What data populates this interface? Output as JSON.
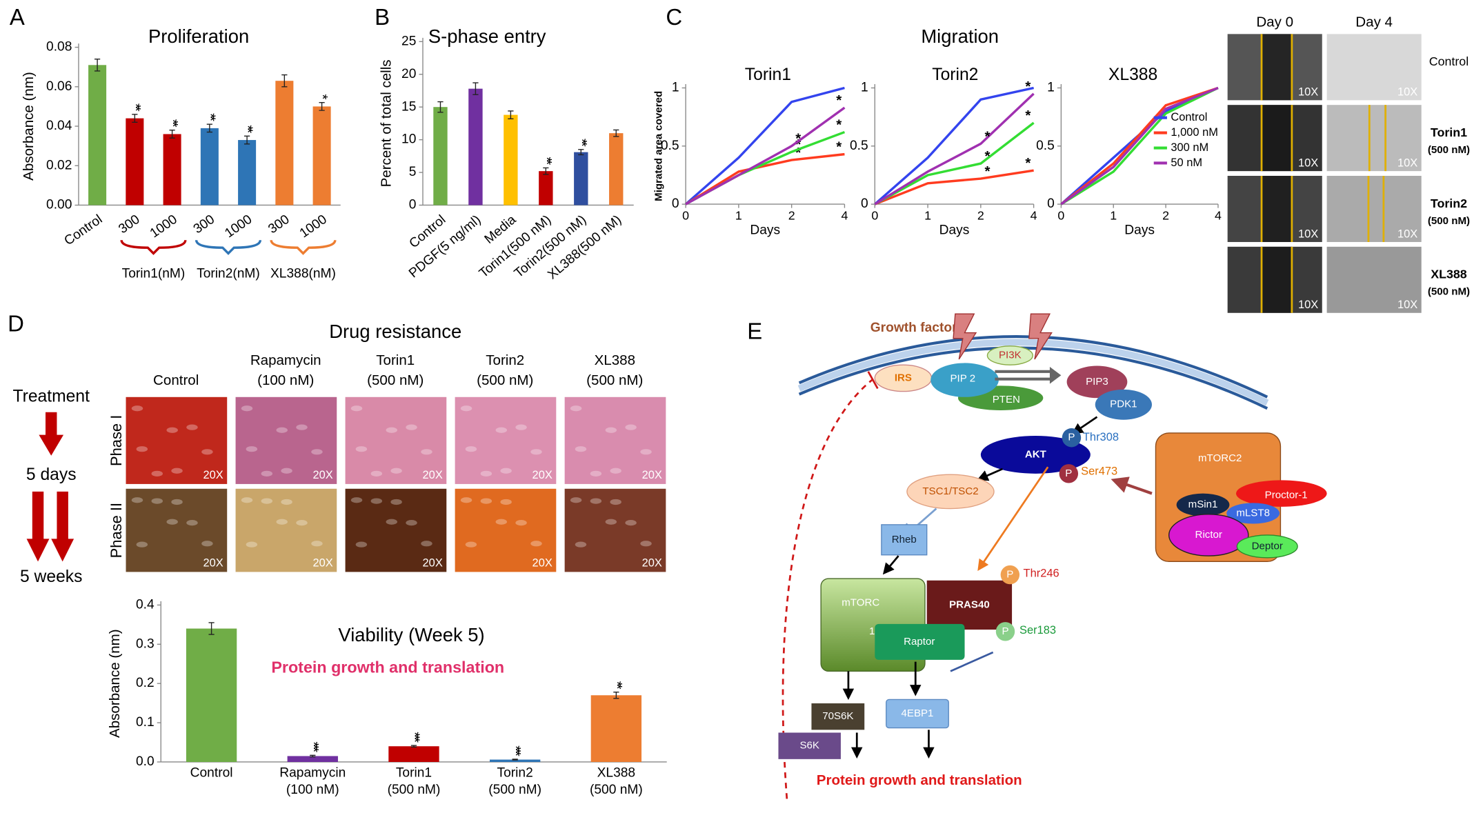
{
  "panel_labels": [
    "A",
    "B",
    "C",
    "D",
    "E"
  ],
  "chart_data": [
    {
      "type": "bar",
      "title": "Proliferation",
      "ylabel": "Absorbance (nm)",
      "categories": [
        "Control",
        "300",
        "1000",
        "300",
        "1000",
        "300",
        "1000"
      ],
      "values": [
        0.071,
        0.044,
        0.036,
        0.039,
        0.033,
        0.063,
        0.05
      ],
      "errors": [
        0.003,
        0.002,
        0.002,
        0.002,
        0.002,
        0.003,
        0.002
      ],
      "significance": [
        null,
        "**",
        "**",
        "**",
        "**",
        null,
        "*"
      ],
      "colors": [
        "#70ad47",
        "#c00000",
        "#c00000",
        "#2e75b6",
        "#2e75b6",
        "#ed7d31",
        "#ed7d31"
      ],
      "groups": [
        "Torin1(nM)",
        "Torin2(nM)",
        "XL388(nM)"
      ],
      "ylim": [
        0,
        0.08
      ],
      "yticks": [
        {
          "value": 0,
          "label": "0.00"
        },
        0.02,
        0.04,
        0.06,
        0.08
      ]
    },
    {
      "type": "bar",
      "title": "S-phase entry",
      "ylabel": "Percent of total cells",
      "categories": [
        "Control",
        "PDGF(5 ng/ml)",
        "Media",
        "Torin1(500 nM)",
        "Torin2(500 nM)",
        "XL388(500 nM)"
      ],
      "values": [
        15,
        17.8,
        13.8,
        5.2,
        8.1,
        11
      ],
      "errors": [
        0.8,
        0.9,
        0.6,
        0.5,
        0.4,
        0.5
      ],
      "significance": [
        null,
        null,
        null,
        "**",
        "**",
        null
      ],
      "colors": [
        "#70ad47",
        "#7030a0",
        "#ffc000",
        "#c00000",
        "#2f4f9f",
        "#ed7d31"
      ],
      "ylim": [
        0,
        25
      ],
      "yticks": [
        0,
        5,
        10,
        15,
        20,
        25
      ]
    },
    {
      "type": "line",
      "title": "Torin1",
      "ylabel": "Migrated area covered",
      "xlabel": "Days",
      "categories": [
        "0",
        "1",
        "2",
        "4"
      ],
      "ylim": [
        0,
        1
      ],
      "yticks": [
        0,
        0.5,
        1
      ],
      "series": [
        {
          "name": "Control",
          "color": "#3344ee",
          "values": [
            0,
            0.4,
            0.88,
            1
          ],
          "significance": [
            null,
            null,
            null,
            null
          ]
        },
        {
          "name": "1,000 nM",
          "color": "#ff3b1f",
          "values": [
            0,
            0.28,
            0.38,
            0.43
          ],
          "significance": [
            null,
            null,
            "*",
            "*"
          ]
        },
        {
          "name": "300 nM",
          "color": "#33dd33",
          "values": [
            0,
            0.25,
            0.45,
            0.62
          ],
          "significance": [
            null,
            null,
            "*",
            "*"
          ]
        },
        {
          "name": "50 nM",
          "color": "#a030b0",
          "values": [
            0,
            0.25,
            0.5,
            0.83
          ],
          "significance": [
            null,
            null,
            "*",
            "*"
          ]
        }
      ]
    },
    {
      "type": "line",
      "title": "Torin2",
      "xlabel": "Days",
      "categories": [
        "0",
        "1",
        "2",
        "4"
      ],
      "ylim": [
        0,
        1
      ],
      "yticks": [
        0,
        0.5,
        1
      ],
      "series": [
        {
          "name": "Control",
          "color": "#3344ee",
          "values": [
            0,
            0.4,
            0.9,
            1
          ],
          "significance": [
            null,
            null,
            null,
            null
          ]
        },
        {
          "name": "1,000 nM",
          "color": "#ff3b1f",
          "values": [
            0,
            0.18,
            0.22,
            0.29
          ],
          "significance": [
            null,
            null,
            "*",
            "*"
          ]
        },
        {
          "name": "300 nM",
          "color": "#33dd33",
          "values": [
            0,
            0.25,
            0.35,
            0.7
          ],
          "significance": [
            null,
            null,
            "*",
            "*"
          ]
        },
        {
          "name": "50 nM",
          "color": "#a030b0",
          "values": [
            0,
            0.28,
            0.52,
            0.95
          ],
          "significance": [
            null,
            null,
            "*",
            "*"
          ]
        }
      ]
    },
    {
      "type": "line",
      "title": "XL388",
      "xlabel": "Days",
      "legend": "center right",
      "categories": [
        "0",
        "1",
        "2",
        "4"
      ],
      "ylim": [
        0,
        1
      ],
      "yticks": [
        0,
        0.5,
        1
      ],
      "series": [
        {
          "name": "Control",
          "color": "#3344ee",
          "values": [
            0,
            0.4,
            0.8,
            1
          ]
        },
        {
          "name": "1,000 nM",
          "color": "#ff3b1f",
          "values": [
            0,
            0.35,
            0.85,
            1
          ]
        },
        {
          "name": "300 nM",
          "color": "#33dd33",
          "values": [
            0,
            0.28,
            0.78,
            1
          ]
        },
        {
          "name": "50 nM",
          "color": "#a030b0",
          "values": [
            0,
            0.32,
            0.82,
            1
          ]
        }
      ]
    },
    {
      "type": "bar",
      "title": "Viability (Week 5)",
      "annotation": "Protein growth and translation",
      "ylabel": "Absorbance (nm)",
      "categories": [
        "Control",
        "Rapamycin (100 nM)",
        "Torin1 (500 nM)",
        "Torin2 (500 nM)",
        "XL388 (500 nM)"
      ],
      "values": [
        0.34,
        0.015,
        0.04,
        0.006,
        0.17
      ],
      "errors": [
        0.015,
        0.002,
        0.002,
        0.001,
        0.008
      ],
      "significance": [
        null,
        "***",
        "***",
        "***",
        "**"
      ],
      "colors": [
        "#70ad47",
        "#7030a0",
        "#c00000",
        "#2e75b6",
        "#ed7d31"
      ],
      "ylim": [
        0,
        0.4
      ],
      "yticks": [
        {
          "value": 0,
          "label": "0.0"
        },
        0.1,
        0.2,
        0.3,
        0.4
      ]
    }
  ],
  "migration": {
    "title": "Migration"
  },
  "scratch_assay": {
    "columns": [
      "Day 0",
      "Day 4"
    ],
    "magnification": "10X",
    "rows": [
      {
        "name": "Control"
      },
      {
        "name": "Torin1",
        "dose": "(500 nM)"
      },
      {
        "name": "Torin2",
        "dose": "(500 nM)"
      },
      {
        "name": "XL388",
        "dose": "(500 nM)"
      }
    ]
  },
  "drug_resistance": {
    "title": "Drug  resistance",
    "timeline": [
      "Treatment",
      "5 days",
      "5 weeks"
    ],
    "rows": [
      "Phase I",
      "Phase II"
    ],
    "magnification": "20X",
    "columns": [
      {
        "name": "Control"
      },
      {
        "name": "Rapamycin",
        "dose": "(100 nM)"
      },
      {
        "name": "Torin1",
        "dose": "(500 nM)"
      },
      {
        "name": "Torin2",
        "dose": "(500 nM)"
      },
      {
        "name": "XL388",
        "dose": "(500 nM)"
      }
    ]
  },
  "pathway": {
    "input": "Growth factors",
    "phospho": "P",
    "pi3k": "PI3K",
    "irs": "IRS",
    "pip2": "PIP 2",
    "pten": "PTEN",
    "pip3": "PIP3",
    "pdk1": "PDK1",
    "akt": "AKT",
    "thr308": "Thr308",
    "ser473": "Ser473",
    "tsc": "TSC1/TSC2",
    "rheb": "Rheb",
    "mtorc1": "mTORC",
    "mtorc1_num": "1",
    "pras40": "PRAS40",
    "thr246": "Thr246",
    "raptor": "Raptor",
    "ser183": "Ser183",
    "s6k70": "70S6K",
    "ebp1": "4EBP1",
    "s6k": "S6K",
    "mtorc2": "mTORC2",
    "msin1": "mSin1",
    "mlst8": "mLST8",
    "proctor": "Proctor-1",
    "rictor": "Rictor",
    "deptor": "Deptor",
    "output": "Protein growth and translation"
  }
}
